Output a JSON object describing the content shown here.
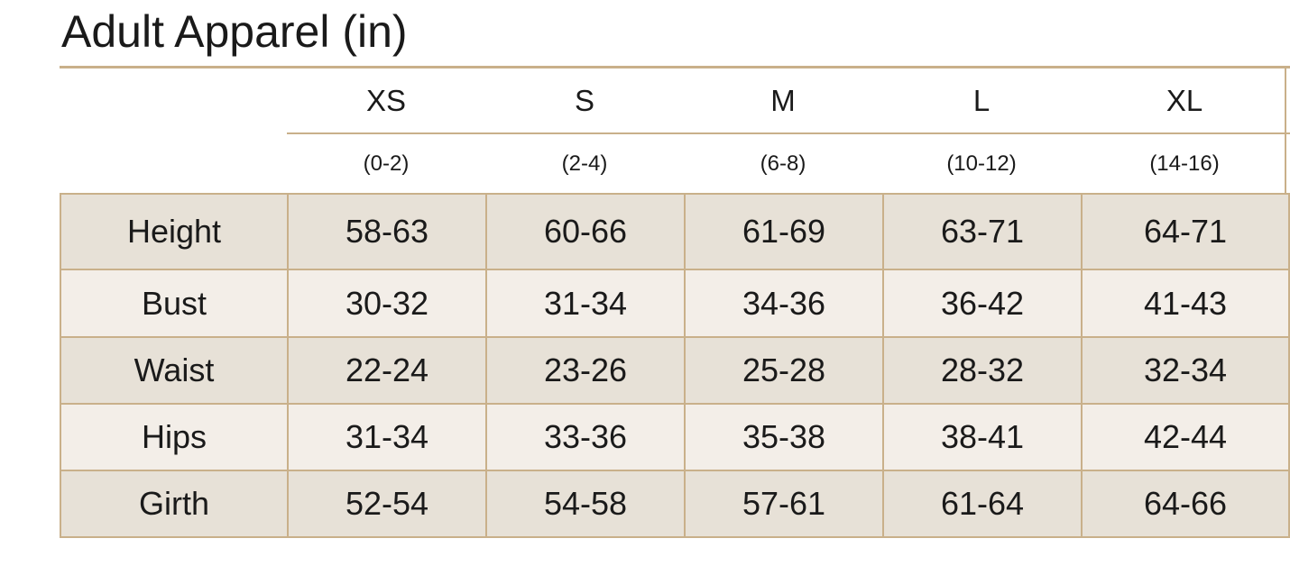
{
  "header": {
    "title": "Adult Apparel (in)"
  },
  "table": {
    "columns": [
      {
        "size": "XS",
        "range": "(0-2)"
      },
      {
        "size": "S",
        "range": "(2-4)"
      },
      {
        "size": "M",
        "range": "(6-8)"
      },
      {
        "size": "L",
        "range": "(10-12)"
      },
      {
        "size": "XL",
        "range": "(14-16)"
      }
    ],
    "rows": [
      [
        "Height",
        "58-63",
        "60-66",
        "61-69",
        "63-71",
        "64-71"
      ],
      [
        "Bust",
        "30-32",
        "31-34",
        "34-36",
        "36-42",
        "41-43"
      ],
      [
        "Waist",
        "22-24",
        "23-26",
        "25-28",
        "28-32",
        "32-34"
      ],
      [
        "Hips",
        "31-34",
        "33-36",
        "35-38",
        "38-41",
        "42-44"
      ],
      [
        "Girth",
        "52-54",
        "54-58",
        "57-61",
        "61-64",
        "64-66"
      ]
    ]
  }
}
